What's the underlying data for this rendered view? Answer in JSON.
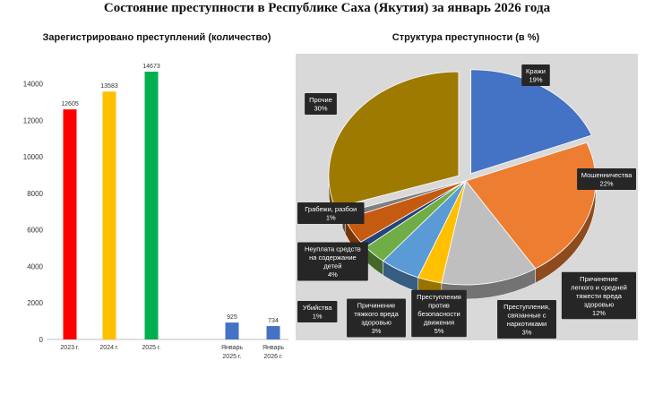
{
  "title": "Состояние преступности в Республике Саха (Якутия) за январь 2026 года",
  "chart_data": [
    {
      "type": "bar",
      "title": "Зарегистрировано преступлений (количество)",
      "categories": [
        "2023 г.",
        "2024 г.",
        "2025 г.",
        "Январь 2025 г.",
        "Январь 2026 г."
      ],
      "category_lines": [
        [
          "2023 г."
        ],
        [
          "2024 г."
        ],
        [
          "2025 г."
        ],
        [
          "Январь",
          "2025 г."
        ],
        [
          "Январь",
          "2026 г."
        ]
      ],
      "values": [
        12605,
        13583,
        14673,
        925,
        734
      ],
      "value_labels": [
        "12605",
        "13583",
        "14673",
        "925",
        "734"
      ],
      "colors": [
        "#ff0000",
        "#ffc000",
        "#00b050",
        "#4472c4",
        "#4472c4"
      ],
      "ylim": [
        0,
        14673
      ],
      "yticks": [
        0,
        2000,
        4000,
        6000,
        8000,
        10000,
        12000,
        14000
      ],
      "grid": false,
      "xlabel": "",
      "ylabel": ""
    },
    {
      "type": "pie",
      "title": "Структура преступности (в %)",
      "background": "#d9d9d9",
      "slices": [
        {
          "name": "Кражи",
          "value": 19,
          "label_lines": [
            "Кражи",
            "19%"
          ],
          "color": "#4472c4"
        },
        {
          "name": "Мошенничества",
          "value": 22,
          "label_lines": [
            "Мошенничества",
            "22%"
          ],
          "color": "#ed7d31"
        },
        {
          "name": "Причинение легкого и средней тяжести вреда здоровью",
          "value": 12,
          "label_lines": [
            "Причинение",
            "легкого и средней",
            "тяжести вреда",
            "здоровью",
            "12%"
          ],
          "color": "#bfbfbf"
        },
        {
          "name": "Преступления, связанные с наркотиками",
          "value": 3,
          "label_lines": [
            "Преступления,",
            "связанные с",
            "наркотиками",
            "3%"
          ],
          "color": "#ffc000"
        },
        {
          "name": "Преступления против безопасности движения",
          "value": 5,
          "label_lines": [
            "Преступления",
            "против",
            "безопасности",
            "движения",
            "5%"
          ],
          "color": "#5b9bd5"
        },
        {
          "name": "Причинение тяжкого вреда здоровью",
          "value": 3,
          "label_lines": [
            "Причинение",
            "тяжкого вреда",
            "здоровью",
            "3%"
          ],
          "color": "#70ad47"
        },
        {
          "name": "Убийства",
          "value": 1,
          "label_lines": [
            "Убийства",
            "1%"
          ],
          "color": "#264478"
        },
        {
          "name": "Неуплата средств на содержание детей",
          "value": 4,
          "label_lines": [
            "Неуплата средств",
            "на содержание",
            "детей",
            "4%"
          ],
          "color": "#c55a11"
        },
        {
          "name": "Грабежи, разбои",
          "value": 1,
          "label_lines": [
            "Грабежи, разбои",
            "1%"
          ],
          "color": "#7f7f7f"
        },
        {
          "name": "Прочие",
          "value": 30,
          "label_lines": [
            "Прочие",
            "30%"
          ],
          "color": "#9e7a00"
        }
      ]
    }
  ]
}
